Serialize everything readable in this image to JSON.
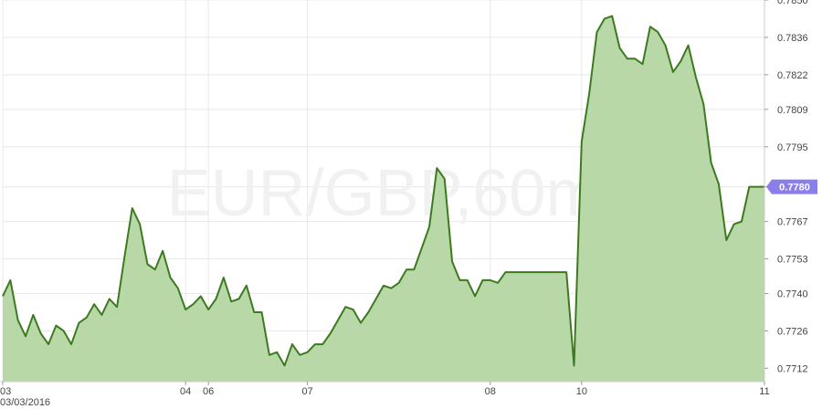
{
  "chart_data": {
    "type": "area",
    "watermark": "EUR/GBP,60m",
    "y_ticks": [
      0.7712,
      0.7726,
      0.774,
      0.7753,
      0.7767,
      0.778,
      0.7795,
      0.7809,
      0.7822,
      0.7836,
      0.785
    ],
    "y_tick_labels": [
      "0.7712",
      "0.7726",
      "0.7740",
      "0.7753",
      "0.7767",
      "0.7780",
      "0.7795",
      "0.7809",
      "0.7822",
      "0.7836",
      "0.7850"
    ],
    "ylim": [
      0.7707,
      0.785
    ],
    "x_ticks": [
      {
        "label": "03",
        "index": 0
      },
      {
        "label": "04",
        "index": 24
      },
      {
        "label": "06",
        "index": 27
      },
      {
        "label": "07",
        "index": 40
      },
      {
        "label": "08",
        "index": 64
      },
      {
        "label": "10",
        "index": 76
      },
      {
        "label": "11",
        "index": 100
      }
    ],
    "date_label": "03/03/2016",
    "last_value_label": "0.7780",
    "series": [
      {
        "values": [
          0.7739,
          0.7745,
          0.773,
          0.7724,
          0.7732,
          0.7725,
          0.7721,
          0.7728,
          0.7726,
          0.7721,
          0.7729,
          0.7731,
          0.7736,
          0.7732,
          0.7738,
          0.7735,
          0.7754,
          0.7772,
          0.7766,
          0.7751,
          0.7749,
          0.7756,
          0.7746,
          0.7742,
          0.7734,
          0.7736,
          0.7739,
          0.7734,
          0.7738,
          0.7746,
          0.7737,
          0.7738,
          0.7743,
          0.7733,
          0.7733,
          0.7717,
          0.7718,
          0.7713,
          0.7721,
          0.7717,
          0.7718,
          0.7721,
          0.7721,
          0.7725,
          0.773,
          0.7735,
          0.7734,
          0.7729,
          0.7733,
          0.7738,
          0.7743,
          0.7742,
          0.7744,
          0.7749,
          0.7749,
          0.7757,
          0.7765,
          0.7787,
          0.7783,
          0.7752,
          0.7745,
          0.7745,
          0.7739,
          0.7745,
          0.7745,
          0.7744,
          0.7748,
          0.7748,
          0.7748,
          0.7748,
          0.7748,
          0.7748,
          0.7748,
          0.7748,
          0.7748,
          0.7713,
          0.7797,
          0.7815,
          0.7838,
          0.7843,
          0.7844,
          0.7832,
          0.7828,
          0.7828,
          0.7826,
          0.784,
          0.7838,
          0.7833,
          0.7823,
          0.7827,
          0.7833,
          0.7821,
          0.7811,
          0.7789,
          0.7781,
          0.776,
          0.7766,
          0.7767,
          0.778,
          0.778,
          0.778
        ]
      }
    ],
    "colors": {
      "line": "#3d7a1f",
      "fill": "#b8d9a7",
      "grid": "#e8e8e8",
      "axis_text": "#444444",
      "badge_bg": "#8a7fe8",
      "badge_text": "#ffffff",
      "watermark": "#f1f1f1"
    }
  }
}
